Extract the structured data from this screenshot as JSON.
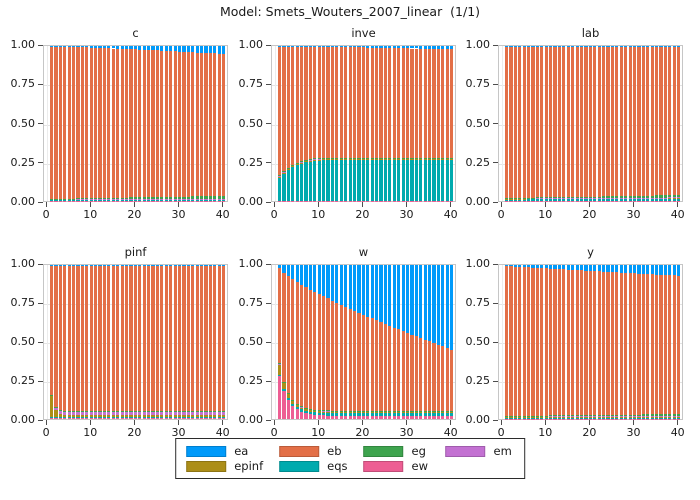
{
  "title": "Model: Smets_Wouters_2007_linear  (1/1)",
  "legend": {
    "items": [
      {
        "label": "ea",
        "color": "#009AFA"
      },
      {
        "label": "eb",
        "color": "#E36F47"
      },
      {
        "label": "eg",
        "color": "#3EA44E"
      },
      {
        "label": "em",
        "color": "#C371D2"
      },
      {
        "label": "epinf",
        "color": "#AC8E18"
      },
      {
        "label": "eqs",
        "color": "#00AAAE"
      },
      {
        "label": "ew",
        "color": "#ED5E93"
      }
    ]
  },
  "chart_data": {
    "type": "bar",
    "stacked": true,
    "title": "Model: Smets_Wouters_2007_linear  (1/1)",
    "horizons_range": [
      1,
      40
    ],
    "xticks": [
      0,
      10,
      20,
      30,
      40
    ],
    "yticks": [
      0,
      0.25,
      0.5,
      0.75,
      1
    ],
    "ytick_labels": [
      "0.00",
      "0.25",
      "0.50",
      "0.75",
      "1.00"
    ],
    "ylim": [
      0,
      1
    ],
    "grid": true,
    "legend_position": "bottom",
    "shocks": {
      "ea": "#009AFA",
      "eb": "#E36F47",
      "eg": "#3EA44E",
      "em": "#C371D2",
      "epinf": "#AC8E18",
      "eqs": "#00AAAE",
      "ew": "#ED5E93"
    },
    "stack_order_bottom_to_top": [
      "ew",
      "eqs",
      "epinf",
      "em",
      "eg",
      "eb",
      "ea"
    ],
    "subplots": [
      {
        "name": "c",
        "series": {
          "ea": [
            0.003,
            0.004,
            0.005,
            0.005,
            0.006,
            0.007,
            0.008,
            0.008,
            0.009,
            0.01,
            0.011,
            0.012,
            0.014,
            0.015,
            0.016,
            0.017,
            0.018,
            0.02,
            0.021,
            0.022,
            0.023,
            0.024,
            0.026,
            0.027,
            0.028,
            0.03,
            0.031,
            0.033,
            0.034,
            0.036,
            0.037,
            0.039,
            0.04,
            0.042,
            0.043,
            0.045,
            0.046,
            0.048,
            0.049,
            0.051
          ],
          "eb": [
            0.983,
            0.982,
            0.98,
            0.98,
            0.978,
            0.977,
            0.975,
            0.975,
            0.973,
            0.972,
            0.97,
            0.969,
            0.966,
            0.965,
            0.963,
            0.962,
            0.96,
            0.958,
            0.956,
            0.955,
            0.953,
            0.952,
            0.949,
            0.948,
            0.946,
            0.944,
            0.942,
            0.94,
            0.938,
            0.936,
            0.934,
            0.932,
            0.93,
            0.928,
            0.926,
            0.923,
            0.922,
            0.919,
            0.918,
            0.915
          ],
          "eg": [
            0.002,
            0.002,
            0.003,
            0.003,
            0.004,
            0.004,
            0.005,
            0.005,
            0.006,
            0.006,
            0.007,
            0.007,
            0.008,
            0.008,
            0.009,
            0.009,
            0.01,
            0.01,
            0.011,
            0.011,
            0.012,
            0.012,
            0.013,
            0.013,
            0.014,
            0.014,
            0.015,
            0.015,
            0.016,
            0.016,
            0.017,
            0.017,
            0.018,
            0.018,
            0.019,
            0.02,
            0.02,
            0.021,
            0.021,
            0.022
          ],
          "em": 0.001,
          "epinf": 0.001,
          "eqs": 0.008,
          "ew": 0.002
        }
      },
      {
        "name": "inve",
        "series": {
          "ea": [
            0.002,
            0.002,
            0.002,
            0.003,
            0.003,
            0.003,
            0.003,
            0.004,
            0.004,
            0.004,
            0.004,
            0.005,
            0.005,
            0.006,
            0.006,
            0.007,
            0.007,
            0.008,
            0.008,
            0.009,
            0.01,
            0.01,
            0.011,
            0.011,
            0.012,
            0.013,
            0.013,
            0.014,
            0.014,
            0.015,
            0.016,
            0.016,
            0.017,
            0.018,
            0.019,
            0.019,
            0.02,
            0.021,
            0.021,
            0.022
          ],
          "eb": [
            0.833,
            0.805,
            0.782,
            0.763,
            0.749,
            0.739,
            0.731,
            0.725,
            0.721,
            0.719,
            0.718,
            0.716,
            0.716,
            0.714,
            0.714,
            0.713,
            0.713,
            0.712,
            0.712,
            0.711,
            0.71,
            0.71,
            0.709,
            0.709,
            0.708,
            0.707,
            0.707,
            0.706,
            0.706,
            0.705,
            0.704,
            0.704,
            0.703,
            0.702,
            0.701,
            0.701,
            0.7,
            0.699,
            0.699,
            0.698
          ],
          "eg": 0.002,
          "em": 0.008,
          "epinf": 0.002,
          "eqs": [
            0.15,
            0.178,
            0.201,
            0.219,
            0.233,
            0.243,
            0.251,
            0.256,
            0.26,
            0.262,
            0.263,
            0.264,
            0.264,
            0.265,
            0.265,
            0.265,
            0.265,
            0.265,
            0.265,
            0.265,
            0.265,
            0.265,
            0.265,
            0.265,
            0.265,
            0.265,
            0.265,
            0.265,
            0.265,
            0.265,
            0.265,
            0.265,
            0.265,
            0.265,
            0.265,
            0.265,
            0.265,
            0.265,
            0.265,
            0.265
          ],
          "ew": 0.003
        }
      },
      {
        "name": "lab",
        "series": {
          "ea": 0.002,
          "eb": [
            0.978,
            0.978,
            0.978,
            0.978,
            0.977,
            0.976,
            0.976,
            0.975,
            0.975,
            0.975,
            0.974,
            0.974,
            0.973,
            0.972,
            0.972,
            0.972,
            0.971,
            0.971,
            0.971,
            0.969,
            0.969,
            0.969,
            0.968,
            0.968,
            0.968,
            0.967,
            0.966,
            0.966,
            0.965,
            0.965,
            0.965,
            0.964,
            0.964,
            0.963,
            0.962,
            0.962,
            0.962,
            0.96,
            0.96,
            0.96
          ],
          "eg": [
            0.003,
            0.003,
            0.003,
            0.003,
            0.004,
            0.004,
            0.004,
            0.005,
            0.005,
            0.005,
            0.006,
            0.006,
            0.006,
            0.007,
            0.007,
            0.007,
            0.008,
            0.008,
            0.008,
            0.009,
            0.009,
            0.009,
            0.01,
            0.01,
            0.01,
            0.011,
            0.011,
            0.011,
            0.012,
            0.012,
            0.012,
            0.013,
            0.013,
            0.013,
            0.014,
            0.014,
            0.014,
            0.015,
            0.015,
            0.015
          ],
          "em": 0.001,
          "epinf": 0.002,
          "eqs": [
            0.012,
            0.012,
            0.012,
            0.012,
            0.012,
            0.013,
            0.013,
            0.013,
            0.013,
            0.013,
            0.013,
            0.013,
            0.014,
            0.014,
            0.014,
            0.014,
            0.014,
            0.014,
            0.014,
            0.015,
            0.015,
            0.015,
            0.015,
            0.015,
            0.015,
            0.015,
            0.016,
            0.016,
            0.016,
            0.016,
            0.016,
            0.016,
            0.016,
            0.017,
            0.017,
            0.017,
            0.017,
            0.018,
            0.018,
            0.018
          ],
          "ew": 0.002
        }
      },
      {
        "name": "pinf",
        "series": {
          "ea": 0.008,
          "eb": [
            0.833,
            0.912,
            0.934,
            0.939,
            0.94,
            0.94,
            0.94,
            0.94,
            0.94,
            0.94,
            0.94,
            0.94,
            0.94,
            0.94,
            0.94,
            0.94,
            0.94,
            0.94,
            0.94,
            0.94,
            0.94,
            0.94,
            0.94,
            0.94,
            0.94,
            0.94,
            0.94,
            0.94,
            0.94,
            0.94,
            0.94,
            0.94,
            0.94,
            0.94,
            0.94,
            0.94,
            0.94,
            0.94,
            0.94,
            0.94
          ],
          "eg": 0.001,
          "em": [
            0.01,
            0.02,
            0.024,
            0.026,
            0.027,
            0.028,
            0.028,
            0.028,
            0.028,
            0.028,
            0.028,
            0.028,
            0.028,
            0.028,
            0.028,
            0.028,
            0.028,
            0.028,
            0.028,
            0.028,
            0.028,
            0.028,
            0.028,
            0.028,
            0.028,
            0.028,
            0.028,
            0.028,
            0.028,
            0.028,
            0.028,
            0.028,
            0.028,
            0.028,
            0.028,
            0.028,
            0.028,
            0.028,
            0.028,
            0.028
          ],
          "epinf": [
            0.137,
            0.048,
            0.022,
            0.015,
            0.013,
            0.012,
            0.012,
            0.012,
            0.012,
            0.012,
            0.012,
            0.012,
            0.012,
            0.012,
            0.012,
            0.012,
            0.012,
            0.012,
            0.012,
            0.012,
            0.012,
            0.012,
            0.012,
            0.012,
            0.012,
            0.012,
            0.012,
            0.012,
            0.012,
            0.012,
            0.012,
            0.012,
            0.012,
            0.012,
            0.012,
            0.012,
            0.012,
            0.012,
            0.012,
            0.012
          ],
          "eqs": 0.005,
          "ew": 0.006
        }
      },
      {
        "name": "w",
        "series": {
          "ea": [
            0.02,
            0.05,
            0.072,
            0.092,
            0.11,
            0.127,
            0.143,
            0.159,
            0.174,
            0.189,
            0.203,
            0.217,
            0.231,
            0.245,
            0.258,
            0.272,
            0.284,
            0.297,
            0.31,
            0.322,
            0.335,
            0.347,
            0.359,
            0.371,
            0.383,
            0.395,
            0.406,
            0.418,
            0.429,
            0.441,
            0.452,
            0.463,
            0.474,
            0.485,
            0.496,
            0.507,
            0.518,
            0.529,
            0.539,
            0.55
          ],
          "eb": [
            0.618,
            0.707,
            0.757,
            0.783,
            0.792,
            0.791,
            0.786,
            0.775,
            0.765,
            0.753,
            0.74,
            0.727,
            0.714,
            0.7,
            0.688,
            0.674,
            0.662,
            0.649,
            0.636,
            0.624,
            0.611,
            0.599,
            0.587,
            0.575,
            0.563,
            0.551,
            0.54,
            0.528,
            0.517,
            0.505,
            0.494,
            0.483,
            0.472,
            0.461,
            0.45,
            0.439,
            0.428,
            0.417,
            0.407,
            0.396
          ],
          "eg": 0.002,
          "em": 0.006,
          "epinf": [
            0.07,
            0.041,
            0.026,
            0.018,
            0.014,
            0.012,
            0.011,
            0.011,
            0.01,
            0.01,
            0.01,
            0.01,
            0.01,
            0.01,
            0.01,
            0.01,
            0.01,
            0.01,
            0.01,
            0.01,
            0.01,
            0.01,
            0.01,
            0.01,
            0.01,
            0.01,
            0.01,
            0.01,
            0.01,
            0.01,
            0.01,
            0.01,
            0.01,
            0.01,
            0.01,
            0.01,
            0.01,
            0.01,
            0.01,
            0.01
          ],
          "eqs": [
            0.004,
            0.009,
            0.012,
            0.013,
            0.014,
            0.015,
            0.015,
            0.016,
            0.016,
            0.016,
            0.016,
            0.016,
            0.016,
            0.016,
            0.016,
            0.016,
            0.016,
            0.016,
            0.016,
            0.016,
            0.016,
            0.016,
            0.016,
            0.016,
            0.016,
            0.016,
            0.016,
            0.016,
            0.016,
            0.016,
            0.016,
            0.016,
            0.016,
            0.016,
            0.016,
            0.016,
            0.016,
            0.016,
            0.016,
            0.016
          ],
          "ew": [
            0.28,
            0.185,
            0.125,
            0.086,
            0.062,
            0.047,
            0.037,
            0.031,
            0.027,
            0.024,
            0.023,
            0.022,
            0.021,
            0.021,
            0.02,
            0.02,
            0.02,
            0.02,
            0.02,
            0.02,
            0.02,
            0.02,
            0.02,
            0.02,
            0.02,
            0.02,
            0.02,
            0.02,
            0.02,
            0.02,
            0.02,
            0.02,
            0.02,
            0.02,
            0.02,
            0.02,
            0.02,
            0.02,
            0.02,
            0.02
          ]
        }
      },
      {
        "name": "y",
        "series": {
          "ea": [
            0.008,
            0.009,
            0.011,
            0.012,
            0.014,
            0.015,
            0.017,
            0.018,
            0.02,
            0.021,
            0.023,
            0.024,
            0.026,
            0.028,
            0.03,
            0.031,
            0.033,
            0.035,
            0.036,
            0.038,
            0.04,
            0.041,
            0.043,
            0.044,
            0.046,
            0.048,
            0.049,
            0.051,
            0.052,
            0.054,
            0.056,
            0.057,
            0.059,
            0.06,
            0.062,
            0.064,
            0.065,
            0.067,
            0.068,
            0.07
          ],
          "eb": [
            0.972,
            0.971,
            0.969,
            0.968,
            0.965,
            0.964,
            0.962,
            0.96,
            0.958,
            0.957,
            0.954,
            0.953,
            0.951,
            0.948,
            0.946,
            0.945,
            0.942,
            0.94,
            0.939,
            0.936,
            0.934,
            0.933,
            0.93,
            0.929,
            0.927,
            0.924,
            0.923,
            0.921,
            0.919,
            0.917,
            0.915,
            0.913,
            0.911,
            0.91,
            0.907,
            0.905,
            0.904,
            0.901,
            0.9,
            0.898
          ],
          "eg": [
            0.003,
            0.003,
            0.003,
            0.003,
            0.004,
            0.004,
            0.004,
            0.005,
            0.005,
            0.005,
            0.006,
            0.006,
            0.006,
            0.007,
            0.007,
            0.007,
            0.008,
            0.008,
            0.008,
            0.009,
            0.009,
            0.009,
            0.01,
            0.01,
            0.01,
            0.011,
            0.011,
            0.011,
            0.012,
            0.012,
            0.012,
            0.013,
            0.013,
            0.013,
            0.014,
            0.014,
            0.014,
            0.015,
            0.015,
            0.015
          ],
          "em": 0.001,
          "epinf": 0.001,
          "eqs": 0.013,
          "ew": 0.002
        }
      }
    ]
  }
}
